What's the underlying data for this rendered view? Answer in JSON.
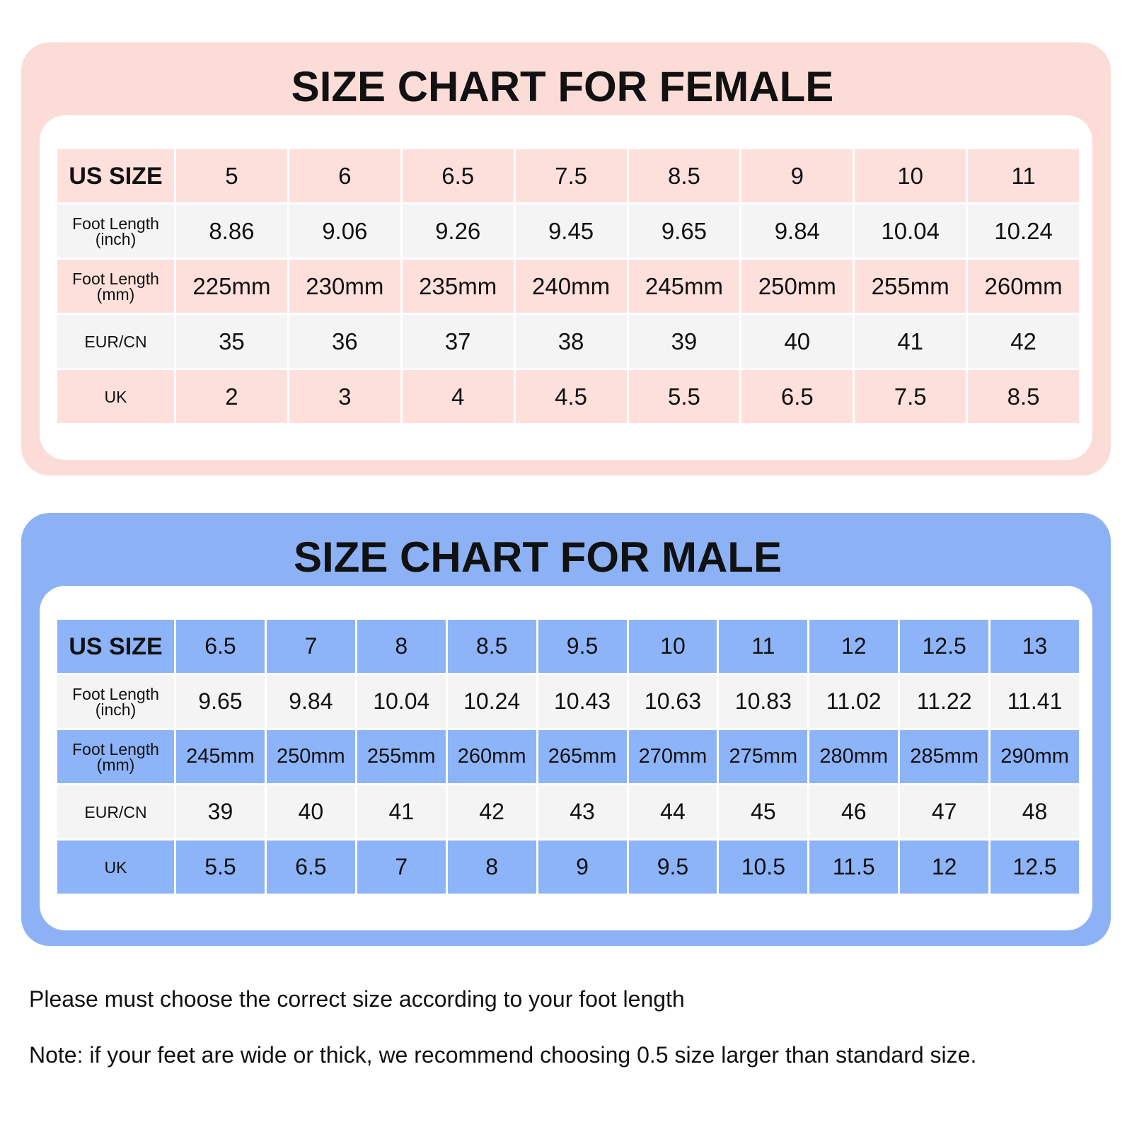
{
  "female": {
    "title": "SIZE CHART FOR FEMALE",
    "rows": [
      {
        "label": "US SIZE",
        "cells": [
          "5",
          "6",
          "6.5",
          "7.5",
          "8.5",
          "9",
          "10",
          "11"
        ]
      },
      {
        "label": "Foot Length (inch)",
        "cells": [
          "8.86",
          "9.06",
          "9.26",
          "9.45",
          "9.65",
          "9.84",
          "10.04",
          "10.24"
        ]
      },
      {
        "label": "Foot Length (mm)",
        "cells": [
          "225mm",
          "230mm",
          "235mm",
          "240mm",
          "245mm",
          "250mm",
          "255mm",
          "260mm"
        ]
      },
      {
        "label": "EUR/CN",
        "cells": [
          "35",
          "36",
          "37",
          "38",
          "39",
          "40",
          "41",
          "42"
        ]
      },
      {
        "label": "UK",
        "cells": [
          "2",
          "3",
          "4",
          "4.5",
          "5.5",
          "6.5",
          "7.5",
          "8.5"
        ]
      }
    ]
  },
  "male": {
    "title": "SIZE CHART FOR MALE",
    "rows": [
      {
        "label": "US SIZE",
        "cells": [
          "6.5",
          "7",
          "8",
          "8.5",
          "9.5",
          "10",
          "11",
          "12",
          "12.5",
          "13"
        ]
      },
      {
        "label": "Foot Length (inch)",
        "cells": [
          "9.65",
          "9.84",
          "10.04",
          "10.24",
          "10.43",
          "10.63",
          "10.83",
          "11.02",
          "11.22",
          "11.41"
        ]
      },
      {
        "label": "Foot Length (mm)",
        "cells": [
          "245mm",
          "250mm",
          "255mm",
          "260mm",
          "265mm",
          "270mm",
          "275mm",
          "280mm",
          "285mm",
          "290mm"
        ]
      },
      {
        "label": "EUR/CN",
        "cells": [
          "39",
          "40",
          "41",
          "42",
          "43",
          "44",
          "45",
          "46",
          "47",
          "48"
        ]
      },
      {
        "label": "UK",
        "cells": [
          "5.5",
          "6.5",
          "7",
          "8",
          "9",
          "9.5",
          "10.5",
          "11.5",
          "12",
          "12.5"
        ]
      }
    ]
  },
  "notes": [
    "Please must choose the correct size according to your foot length",
    "Note: if your feet are wide or thick, we recommend choosing 0.5 size larger than standard size."
  ]
}
